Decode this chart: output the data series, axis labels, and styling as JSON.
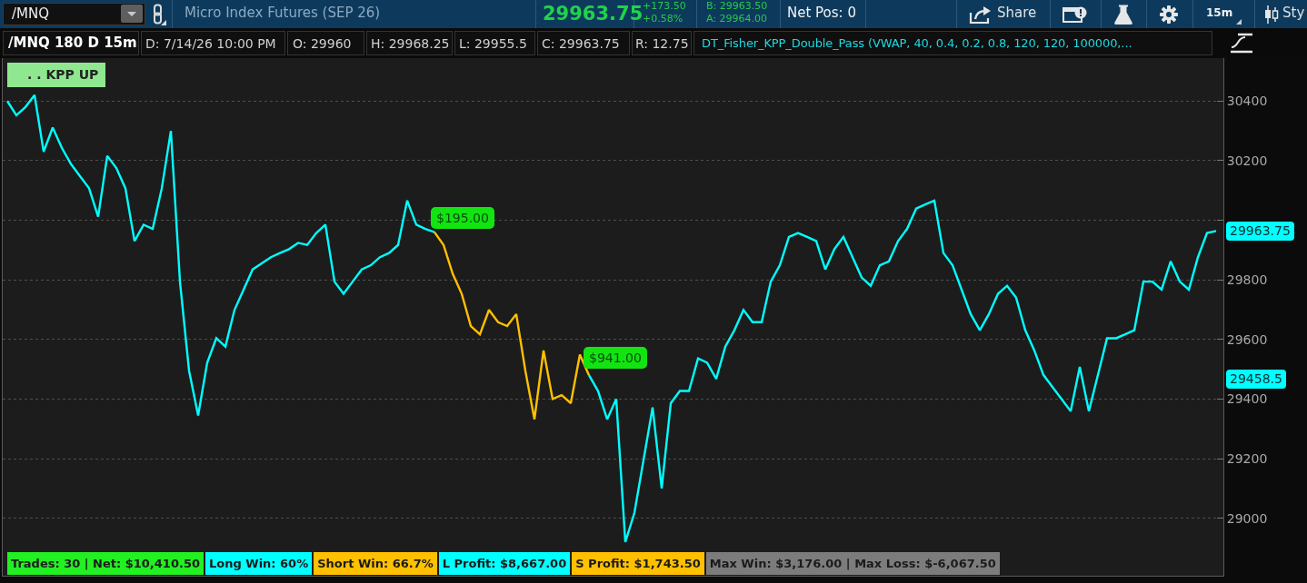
{
  "chart_data": {
    "type": "line",
    "title": "/MNQ 180 D 15m",
    "categories": [
      null,
      null,
      null,
      null,
      null,
      null,
      null,
      null,
      null,
      null,
      null,
      null,
      null,
      null,
      null,
      null,
      null,
      null,
      null,
      null,
      null,
      null,
      null,
      null,
      null,
      null,
      null,
      null,
      null,
      null,
      null,
      null,
      null,
      null,
      null,
      null,
      null,
      null,
      null,
      null,
      null,
      null,
      null,
      null,
      null,
      null,
      null,
      null,
      null,
      null,
      null,
      null,
      null,
      null,
      null,
      null,
      null,
      null,
      null,
      null,
      null,
      null,
      null,
      null,
      null,
      null,
      null,
      null,
      null,
      null,
      null,
      null,
      null,
      null,
      null,
      null,
      null,
      null,
      null,
      null,
      null,
      null,
      null,
      null,
      null,
      null,
      null,
      null,
      null,
      null,
      null,
      null,
      null,
      null,
      null,
      null,
      null,
      null,
      null,
      null,
      null,
      null,
      null,
      null,
      null,
      null,
      null,
      null,
      null,
      null,
      null,
      null,
      null,
      null,
      null,
      null,
      null,
      null,
      null,
      null,
      null,
      null,
      null,
      null,
      null,
      null,
      null,
      null,
      null,
      null,
      null,
      null,
      null,
      null
    ],
    "series": [
      {
        "color": "#00ffff",
        "values": [
          30400,
          30352,
          30380,
          30420,
          30230,
          30311,
          30243,
          30189,
          30148,
          30107,
          30012,
          30216,
          30175,
          30107,
          29930,
          29985,
          29971,
          30107,
          30300,
          29794,
          29495,
          29345,
          29522,
          29604,
          29576,
          29699,
          29767,
          29835,
          29855,
          29876,
          29890,
          29903,
          29924,
          29917,
          29957,
          29985,
          29794,
          29753,
          29794,
          29835,
          29849,
          29876,
          29890,
          29917,
          30066,
          29985,
          29971,
          29960,
          null,
          null,
          null,
          null,
          null,
          null,
          null,
          null,
          null,
          null,
          null,
          null,
          null,
          null,
          null,
          null,
          null,
          null,
          null,
          null,
          null,
          null,
          null,
          null,
          null,
          null,
          null,
          null,
          null,
          null,
          null,
          null,
          null,
          null,
          null,
          null,
          null,
          null,
          null,
          null,
          null,
          null,
          null,
          null,
          null,
          null,
          null,
          null,
          null,
          null,
          null,
          null,
          null,
          null,
          null,
          null,
          null,
          null,
          null,
          null,
          null,
          null,
          null,
          null,
          null,
          null,
          null,
          null,
          null,
          null,
          null,
          null,
          null,
          null,
          null,
          null,
          null,
          null,
          null,
          null,
          null,
          null,
          null,
          null,
          null,
          null
        ]
      },
      {
        "color": "#ffc000",
        "values": [
          null,
          null,
          null,
          null,
          null,
          null,
          null,
          null,
          null,
          null,
          null,
          null,
          null,
          null,
          null,
          null,
          null,
          null,
          null,
          null,
          null,
          null,
          null,
          null,
          null,
          null,
          null,
          null,
          null,
          null,
          null,
          null,
          null,
          null,
          null,
          null,
          null,
          null,
          null,
          null,
          null,
          null,
          null,
          null,
          null,
          null,
          null,
          29960,
          29917,
          29821,
          29753,
          29645,
          29617,
          29699,
          29658,
          29645,
          29685,
          29495,
          29332,
          29563,
          29400,
          29413,
          29386,
          29549,
          29480,
          null,
          null,
          null,
          null,
          null,
          null,
          null,
          null,
          null,
          null,
          null,
          null,
          null,
          null,
          null,
          null,
          null,
          null,
          null,
          null,
          null,
          null,
          null,
          null,
          null,
          null,
          null,
          null,
          null,
          null,
          null,
          null,
          null,
          null,
          null,
          null,
          null,
          null,
          null,
          null,
          null,
          null,
          null,
          null,
          null,
          null,
          null,
          null,
          null,
          null,
          null,
          null,
          null,
          null,
          null,
          null,
          null,
          null,
          null,
          null,
          null,
          null,
          null,
          null,
          null,
          null,
          null,
          null,
          null
        ]
      },
      {
        "color": "#00ffff",
        "values": [
          null,
          null,
          null,
          null,
          null,
          null,
          null,
          null,
          null,
          null,
          null,
          null,
          null,
          null,
          null,
          null,
          null,
          null,
          null,
          null,
          null,
          null,
          null,
          null,
          null,
          null,
          null,
          null,
          null,
          null,
          null,
          null,
          null,
          null,
          null,
          null,
          null,
          null,
          null,
          null,
          null,
          null,
          null,
          null,
          null,
          null,
          null,
          null,
          null,
          null,
          null,
          null,
          null,
          null,
          null,
          null,
          null,
          null,
          null,
          null,
          null,
          null,
          null,
          null,
          29480,
          29427,
          29332,
          29400,
          28920,
          29018,
          29195,
          29372,
          29100,
          29386,
          29427,
          29427,
          29536,
          29522,
          29468,
          29576,
          29631,
          29699,
          29658,
          29658,
          29794,
          29849,
          29944,
          29957,
          29944,
          29930,
          29835,
          29903,
          29944,
          29876,
          29808,
          29780,
          29849,
          29862,
          29930,
          29971,
          30039,
          30053,
          30066,
          29890,
          29849,
          29767,
          29685,
          29631,
          29685,
          29753,
          29780,
          29740,
          29631,
          29563,
          29481,
          29440,
          29400,
          29359,
          29508,
          29359,
          29481,
          29604,
          29604,
          29617,
          29631,
          29794,
          29794,
          29767,
          29862,
          29794,
          29767,
          29876,
          29957,
          29964
        ]
      }
    ],
    "ylim": [
      28807,
      30544
    ],
    "yticks": [
      29000,
      29200,
      29400,
      29600,
      29800,
      {
        "value": 30000,
        "label": null
      },
      30200,
      30400
    ],
    "grid": "y",
    "annotations": [
      "/MNQ",
      "Micro Index Futures (SEP 26)",
      "29963.75",
      "+173.50",
      "+0.58%",
      "B: 29963.50",
      "A: 29964.00",
      "Net Pos: 0",
      "Share",
      "15m",
      "Sty",
      "D: 7/14/26 10:00 PM",
      "O: 29960",
      "H: 29968.25",
      "L: 29955.5",
      "C: 29963.75",
      "R: 12.75",
      "DT_Fisher_KPP_Double_Pass (VWAP, 40, 0.4, 0.2, 0.8, 120, 120, 100000,...",
      ". . KPP UP",
      "Trades: 30 | Net: $10,410.50",
      "Long Win: 60%",
      "Short Win: 66.7%",
      "L Profit: $8,667.00",
      "S Profit: $1,743.50",
      "Max Win: $3,176.00 | Max Loss: $-6,067.50",
      "$195.00",
      "$941.00",
      "29963.75",
      "29458.5"
    ]
  }
}
